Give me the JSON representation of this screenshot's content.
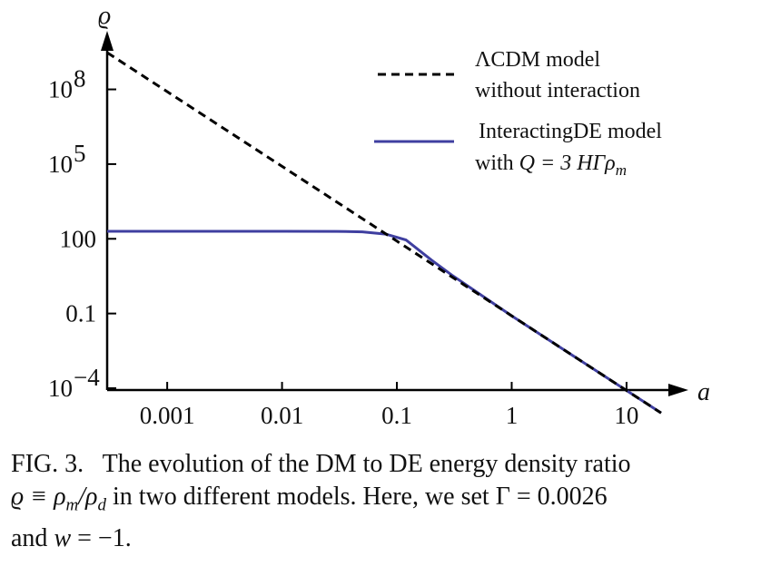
{
  "chart_data": {
    "type": "line",
    "xscale": "log",
    "yscale": "log",
    "xlabel": "a",
    "ylabel": "ϱ",
    "xlim": [
      0.0003,
      20
    ],
    "ylim": [
      0.0001,
      3000000000
    ],
    "x_ticks": [
      {
        "value": 0.001,
        "label": "0.001"
      },
      {
        "value": 0.01,
        "label": "0.01"
      },
      {
        "value": 0.1,
        "label": "0.1"
      },
      {
        "value": 1,
        "label": "1"
      },
      {
        "value": 10,
        "label": "10"
      }
    ],
    "y_ticks": [
      {
        "value": 0.0001,
        "base": "10",
        "exp": "−4"
      },
      {
        "value": 0.1,
        "base": "0.1",
        "exp": ""
      },
      {
        "value": 100,
        "base": "100",
        "exp": ""
      },
      {
        "value": 100000,
        "base": "10",
        "exp": "5"
      },
      {
        "value": 100000000,
        "base": "10",
        "exp": "8"
      }
    ],
    "series": [
      {
        "name": "ΛCDM model without interaction",
        "style": "dashed",
        "color": "#000000",
        "relation": "ϱ ∝ a^-3",
        "points": [
          [
            0.0003,
            3000000000
          ],
          [
            0.01,
            81000
          ],
          [
            0.1,
            81
          ],
          [
            1,
            0.081
          ],
          [
            10,
            8.1e-05
          ],
          [
            20,
            1.01e-05
          ]
        ]
      },
      {
        "name": "InteractingDE model with Q = 3 HΓρm",
        "style": "solid",
        "color": "#3f3fa0",
        "points": [
          [
            0.0003,
            200
          ],
          [
            0.01,
            200
          ],
          [
            0.03,
            199
          ],
          [
            0.05,
            190
          ],
          [
            0.08,
            155
          ],
          [
            0.12,
            90
          ],
          [
            0.2,
            14
          ],
          [
            0.3,
            3.5
          ],
          [
            1,
            0.081
          ],
          [
            10,
            8.1e-05
          ],
          [
            20,
            1.01e-05
          ]
        ]
      }
    ],
    "legend": {
      "position": "top-right",
      "entries": [
        {
          "line1": "ΛCDM model",
          "line2": "without interaction"
        },
        {
          "line1": "InteractingDE model",
          "line2_prefix": "with ",
          "line2_math": "Q = 3 HΓρ",
          "line2_sub": "m"
        }
      ]
    }
  },
  "caption": {
    "label": "FIG. 3.",
    "text_a": "The evolution of the DM to DE energy density ratio",
    "text_b": "ϱ ≡ ρ",
    "sub_m": "m",
    "slash": "/ρ",
    "sub_d": "d",
    "text_c": " in two different models. Here, we set Γ = 0.0026",
    "text_d": "and ",
    "w_var": "w",
    "text_e": " = −1."
  }
}
